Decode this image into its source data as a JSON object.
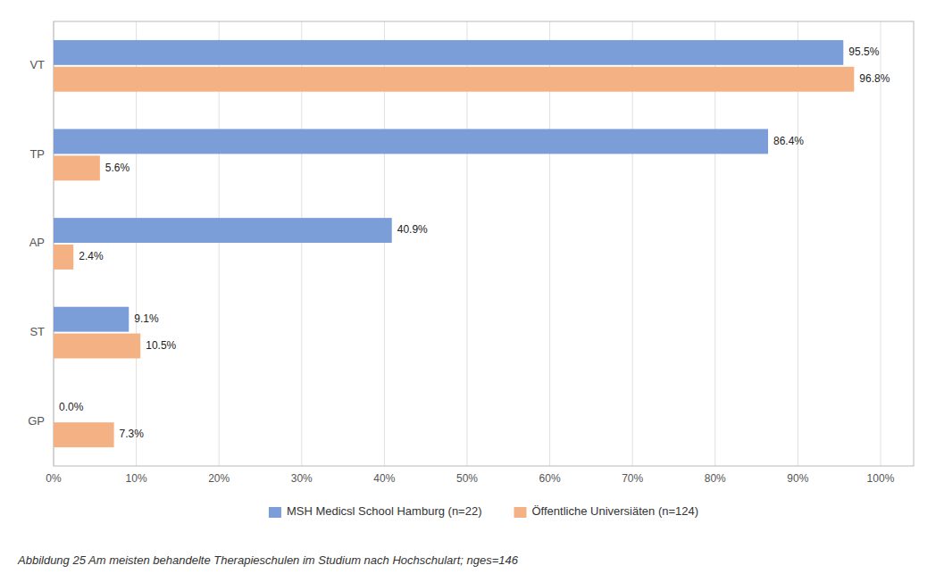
{
  "chart_data": {
    "type": "bar",
    "orientation": "horizontal",
    "categories": [
      "GP",
      "ST",
      "AP",
      "TP",
      "VT"
    ],
    "series": [
      {
        "name": "MSH Medicsl School Hamburg (n=22)",
        "color": "#7B9ED9",
        "values": [
          0.0,
          9.1,
          40.9,
          86.4,
          95.5
        ],
        "value_labels": [
          "0.0%",
          "9.1%",
          "40.9%",
          "86.4%",
          "95.5%"
        ]
      },
      {
        "name": "Öffentliche Universiäten (n=124)",
        "color": "#F4B183",
        "values": [
          7.3,
          10.5,
          2.4,
          5.6,
          96.8
        ],
        "value_labels": [
          "7.3%",
          "10.5%",
          "2.4%",
          "5.6%",
          "96.8%"
        ]
      }
    ],
    "xlim": [
      0,
      104
    ],
    "xticks": [
      {
        "value": 0,
        "label": "0%"
      },
      {
        "value": 10,
        "label": "10%"
      },
      {
        "value": 20,
        "label": "20%"
      },
      {
        "value": 30,
        "label": "30%"
      },
      {
        "value": 40,
        "label": "40%"
      },
      {
        "value": 50,
        "label": "50%"
      },
      {
        "value": 60,
        "label": "60%"
      },
      {
        "value": 70,
        "label": "70%"
      },
      {
        "value": 80,
        "label": "80%"
      },
      {
        "value": 90,
        "label": "90%"
      },
      {
        "value": 100,
        "label": "100%"
      }
    ],
    "grid": true,
    "data_labels": true,
    "legend": "bottom",
    "annotations": [
      "Abbildung 25 Am meisten behandelte Therapieschulen im Studium nach Hochschulart; nges=146"
    ]
  }
}
